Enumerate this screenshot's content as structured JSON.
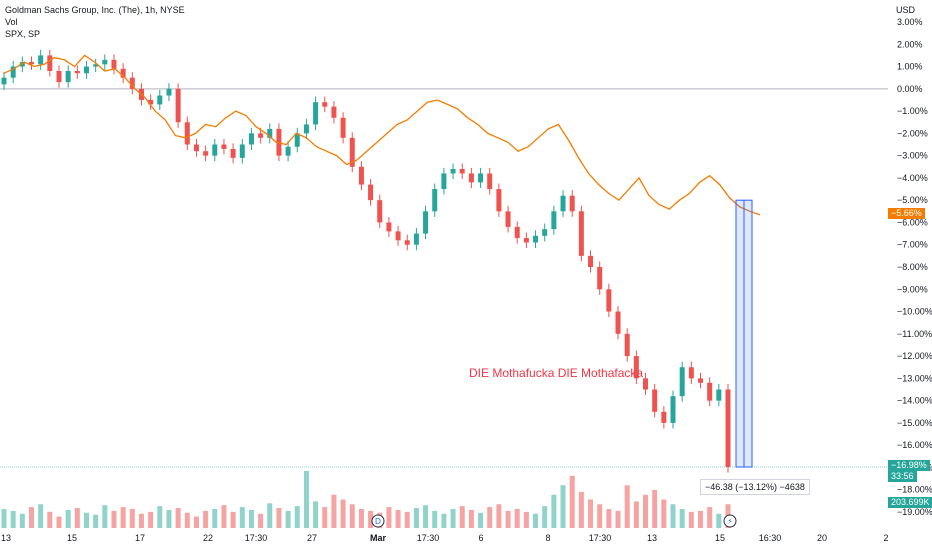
{
  "legend": {
    "symbol": "Goldman Sachs Group, Inc. (The), 1h, NYSE",
    "vol": "Vol",
    "compare": "SPX, SP"
  },
  "axis": {
    "currency": "USD"
  },
  "badges": {
    "spx_change": "−5.66%",
    "gs_change": "−16.98%",
    "gs_countdown": "33:56",
    "volume": "203.699K"
  },
  "annotation": "DIE Mothafucka DIE Mothafacka",
  "measure_label": "−46.38 (−13.12%) −4638",
  "event_markers": [
    {
      "name": "dividend-marker",
      "label": "D"
    },
    {
      "name": "earnings-marker",
      "label": "⚡"
    }
  ],
  "colors": {
    "up": "#26a69a",
    "down": "#ef5350",
    "spx_line": "#f57c00",
    "vol_up": "#8fd3cb",
    "vol_down": "#f5a3a3",
    "measure": "#2962ff"
  },
  "chart_data": {
    "type": "candlestick",
    "title": "Goldman Sachs Group, Inc. (The), 1h, NYSE",
    "y_unit": "percent change",
    "ylim": [
      -19,
      3
    ],
    "y_ticks": [
      "3.00%",
      "2.00%",
      "1.00%",
      "0.00%",
      "−1.00%",
      "−2.00%",
      "−3.00%",
      "−4.00%",
      "−5.00%",
      "−6.00%",
      "−7.00%",
      "−8.00%",
      "−9.00%",
      "−10.00%",
      "−11.00%",
      "−12.00%",
      "−13.00%",
      "−14.00%",
      "−15.00%",
      "−16.00%",
      "−17.00%",
      "−18.00%",
      "−19.00%"
    ],
    "x_ticks": [
      "13",
      "15",
      "17",
      "22",
      "17:30",
      "27",
      "Mar",
      "17:30",
      "6",
      "8",
      "17:30",
      "13",
      "15",
      "16:30",
      "20",
      "2"
    ],
    "gs_close_series": [
      0.5,
      1.0,
      1.2,
      1.1,
      1.5,
      0.8,
      0.3,
      0.8,
      0.7,
      1.0,
      1.1,
      1.3,
      0.9,
      0.5,
      0.0,
      -0.5,
      -0.7,
      -0.3,
      0.0,
      -1.5,
      -2.5,
      -2.8,
      -3.0,
      -2.5,
      -2.7,
      -3.1,
      -2.5,
      -2.0,
      -2.2,
      -1.8,
      -3.0,
      -2.6,
      -2.0,
      -1.6,
      -0.6,
      -0.8,
      -1.3,
      -2.2,
      -3.5,
      -4.3,
      -5.0,
      -6.0,
      -6.4,
      -6.8,
      -7.0,
      -6.5,
      -5.5,
      -4.5,
      -3.8,
      -3.6,
      -3.8,
      -4.2,
      -3.8,
      -4.5,
      -5.5,
      -6.2,
      -6.7,
      -6.9,
      -6.6,
      -6.3,
      -5.5,
      -4.8,
      -5.5,
      -7.5,
      -8.0,
      -9.0,
      -10.0,
      -11.0,
      -12.0,
      -13.0,
      -13.5,
      -14.5,
      -15.0,
      -13.8,
      -12.5,
      -13.0,
      -13.2,
      -14.0,
      -13.5,
      -16.98
    ],
    "series": [
      {
        "name": "SPX, SP",
        "values": [
          0.7,
          0.9,
          1.2,
          1.0,
          1.1,
          1.4,
          1.3,
          1.0,
          1.5,
          1.2,
          0.8,
          0.9,
          0.5,
          0.0,
          -0.4,
          -1.0,
          -1.4,
          -2.1,
          -2.2,
          -2.0,
          -1.6,
          -1.7,
          -1.3,
          -1.0,
          -1.2,
          -1.7,
          -2.0,
          -2.4,
          -2.5,
          -2.0,
          -2.2,
          -2.6,
          -2.8,
          -3.0,
          -3.4,
          -3.2,
          -2.8,
          -2.4,
          -2.0,
          -1.6,
          -1.4,
          -1.0,
          -0.6,
          -0.5,
          -0.7,
          -0.9,
          -1.3,
          -1.6,
          -2.0,
          -2.2,
          -2.4,
          -2.8,
          -2.6,
          -2.2,
          -1.8,
          -1.6,
          -2.3,
          -3.1,
          -3.8,
          -4.3,
          -4.7,
          -5.0,
          -4.5,
          -4.0,
          -4.8,
          -5.2,
          -5.4,
          -5.0,
          -4.7,
          -4.2,
          -3.9,
          -4.3,
          -4.9,
          -5.3,
          -5.5,
          -5.66
        ]
      }
    ],
    "volume_series": [
      20,
      18,
      15,
      22,
      25,
      17,
      12,
      19,
      21,
      16,
      14,
      24,
      18,
      22,
      20,
      15,
      17,
      23,
      19,
      21,
      16,
      12,
      18,
      20,
      24,
      17,
      22,
      19,
      15,
      26,
      21,
      18,
      23,
      60,
      28,
      22,
      35,
      30,
      25,
      20,
      18,
      16,
      22,
      19,
      17,
      21,
      24,
      18,
      15,
      20,
      23,
      19,
      16,
      22,
      25,
      18,
      20,
      17,
      15,
      23,
      35,
      45,
      55,
      38,
      30,
      25,
      20,
      18,
      45,
      28,
      35,
      40,
      30,
      25,
      20,
      17,
      18,
      22,
      15,
      25
    ]
  }
}
